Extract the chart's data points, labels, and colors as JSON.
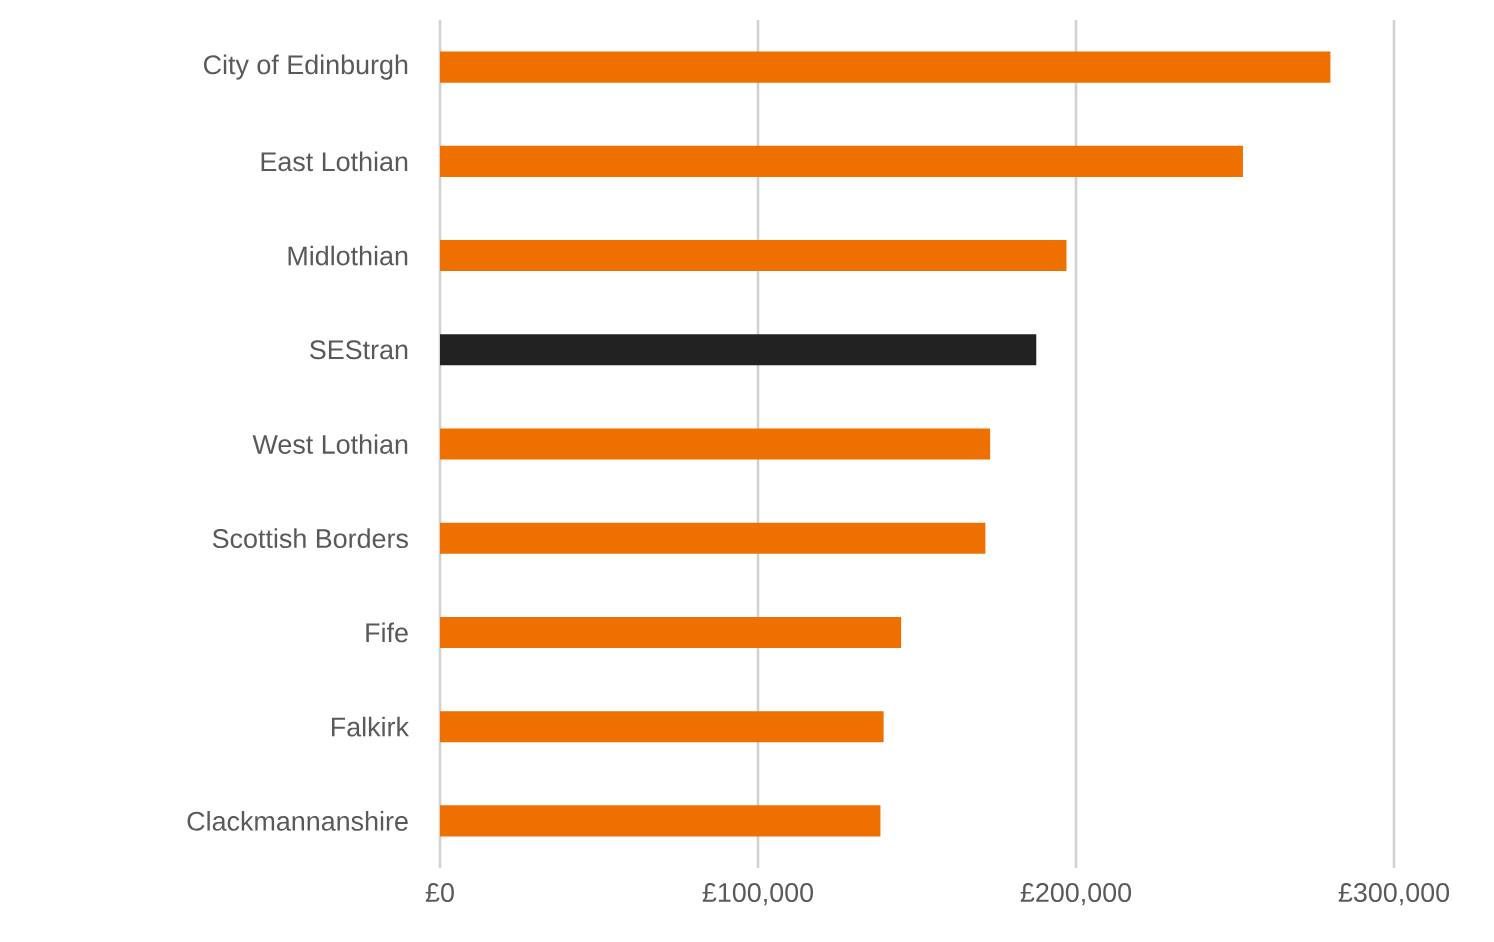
{
  "chart_data": {
    "type": "bar",
    "orientation": "horizontal",
    "categories": [
      "City of Edinburgh",
      "East Lothian",
      "Midlothian",
      "SEStran",
      "West Lothian",
      "Scottish Borders",
      "Fife",
      "Falkirk",
      "Clackmannanshire"
    ],
    "values": [
      280000,
      252500,
      197000,
      187500,
      173000,
      171500,
      145000,
      139500,
      138500
    ],
    "colors": [
      "#ed7000",
      "#ed7000",
      "#ed7000",
      "#222222",
      "#ed7000",
      "#ed7000",
      "#ed7000",
      "#ed7000",
      "#ed7000"
    ],
    "xlim": [
      0,
      300000
    ],
    "xticks": [
      {
        "value": 0,
        "label": "£0"
      },
      {
        "value": 100000,
        "label": "£100,000"
      },
      {
        "value": 200000,
        "label": "£200,000"
      },
      {
        "value": 300000,
        "label": "£300,000"
      }
    ],
    "grid": "x"
  }
}
